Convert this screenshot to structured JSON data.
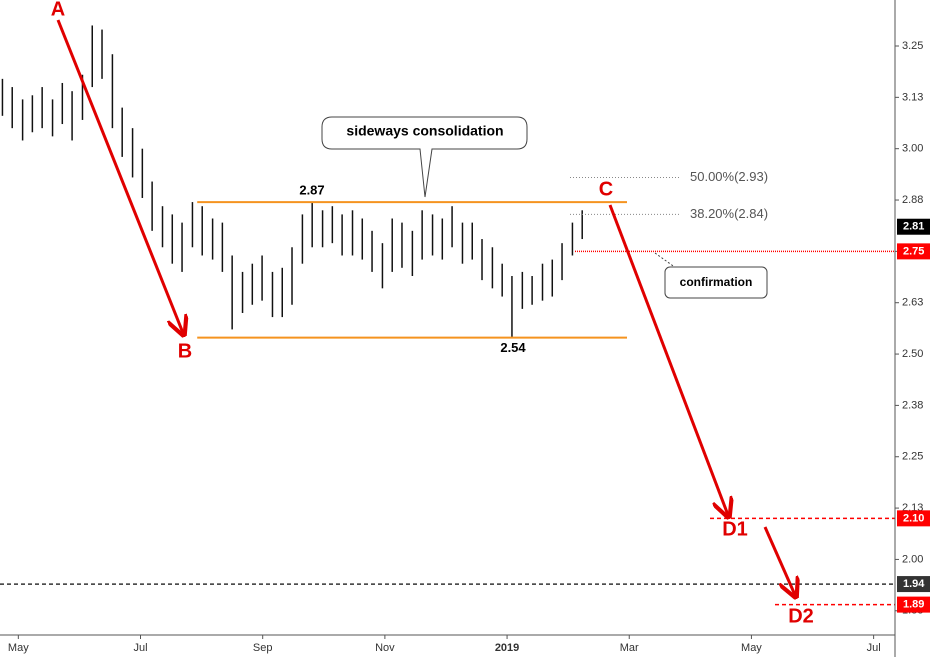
{
  "chart_data": {
    "type": "ohlc",
    "color": "#111111",
    "x": [
      -0.26,
      -0.1,
      0.07,
      0.23,
      0.39,
      0.56,
      0.72,
      0.88,
      1.05,
      1.21,
      1.37,
      1.54,
      1.7,
      1.87,
      2.03,
      2.19,
      2.36,
      2.52,
      2.68,
      2.85,
      3.01,
      3.18,
      3.34,
      3.5,
      3.67,
      3.83,
      3.99,
      4.16,
      4.32,
      4.48,
      4.65,
      4.81,
      4.98,
      5.14,
      5.3,
      5.47,
      5.63,
      5.79,
      5.96,
      6.12,
      6.28,
      6.45,
      6.61,
      6.78,
      6.94,
      7.1,
      7.27,
      7.43,
      7.59,
      7.76,
      7.92,
      8.08,
      8.25,
      8.41,
      8.58,
      8.74,
      8.9,
      9.07,
      9.23
    ],
    "high": [
      3.17,
      3.15,
      3.12,
      3.13,
      3.15,
      3.12,
      3.16,
      3.14,
      3.18,
      3.3,
      3.29,
      3.23,
      3.1,
      3.05,
      3.0,
      2.92,
      2.86,
      2.84,
      2.82,
      2.87,
      2.86,
      2.83,
      2.82,
      2.74,
      2.7,
      2.72,
      2.74,
      2.7,
      2.71,
      2.76,
      2.84,
      2.87,
      2.85,
      2.86,
      2.84,
      2.85,
      2.83,
      2.8,
      2.77,
      2.83,
      2.82,
      2.8,
      2.85,
      2.84,
      2.83,
      2.86,
      2.82,
      2.82,
      2.78,
      2.76,
      2.72,
      2.69,
      2.7,
      2.69,
      2.72,
      2.73,
      2.77,
      2.82,
      2.85
    ],
    "low": [
      3.08,
      3.05,
      3.02,
      3.04,
      3.05,
      3.03,
      3.06,
      3.02,
      3.07,
      3.15,
      3.17,
      3.05,
      2.98,
      2.93,
      2.88,
      2.8,
      2.76,
      2.72,
      2.7,
      2.76,
      2.74,
      2.73,
      2.7,
      2.56,
      2.6,
      2.62,
      2.63,
      2.59,
      2.59,
      2.62,
      2.72,
      2.76,
      2.76,
      2.77,
      2.74,
      2.74,
      2.73,
      2.7,
      2.66,
      2.7,
      2.71,
      2.69,
      2.73,
      2.74,
      2.73,
      2.76,
      2.72,
      2.73,
      2.68,
      2.66,
      2.64,
      2.54,
      2.61,
      2.62,
      2.63,
      2.64,
      2.68,
      2.74,
      2.78
    ],
    "xlim": [
      -0.3,
      14.35
    ],
    "xticks": [
      {
        "value": 0,
        "label": "May"
      },
      {
        "value": 2,
        "label": "Jul"
      },
      {
        "value": 4,
        "label": "Sep"
      },
      {
        "value": 6,
        "label": "Nov"
      },
      {
        "value": 8,
        "label": "2019"
      },
      {
        "value": 10,
        "label": "Mar"
      },
      {
        "value": 12,
        "label": "May"
      },
      {
        "value": 14,
        "label": "Jul"
      }
    ],
    "ylim": [
      1.816,
      3.362
    ],
    "yticks": [
      3.25,
      {
        "value": 3.125,
        "label": "3.13"
      },
      {
        "value": 3,
        "label": "3.00"
      },
      {
        "value": 2.875,
        "label": "2.88"
      },
      2.75,
      {
        "value": 2.625,
        "label": "2.63"
      },
      {
        "value": 2.5,
        "label": "2.50"
      },
      {
        "value": 2.375,
        "label": "2.38"
      },
      2.25,
      {
        "value": 2.125,
        "label": "2.13"
      },
      {
        "value": 2,
        "label": "2.00"
      },
      {
        "value": 1.875,
        "label": "1.88"
      }
    ],
    "price_levels": [
      {
        "value": 2.81,
        "color": "#000000"
      },
      {
        "value": 2.75,
        "color": "#ff0000"
      },
      {
        "value": 2.1,
        "label": "2.10",
        "color": "#ff0000"
      },
      {
        "value": 1.94,
        "color": "#333333"
      },
      {
        "value": 1.89,
        "color": "#ff0000"
      }
    ],
    "channel": {
      "resistance": 2.87,
      "support": 2.54
    },
    "fibonacci": [
      {
        "label": "50.00%(2.93)",
        "value": 2.93
      },
      {
        "label": "38.20%(2.84)",
        "value": 2.84
      }
    ],
    "callout": "sideways consolidation",
    "confirmation": "confirmation",
    "wave_labels": [
      "A",
      "B",
      "C",
      "D1",
      "D2"
    ]
  }
}
